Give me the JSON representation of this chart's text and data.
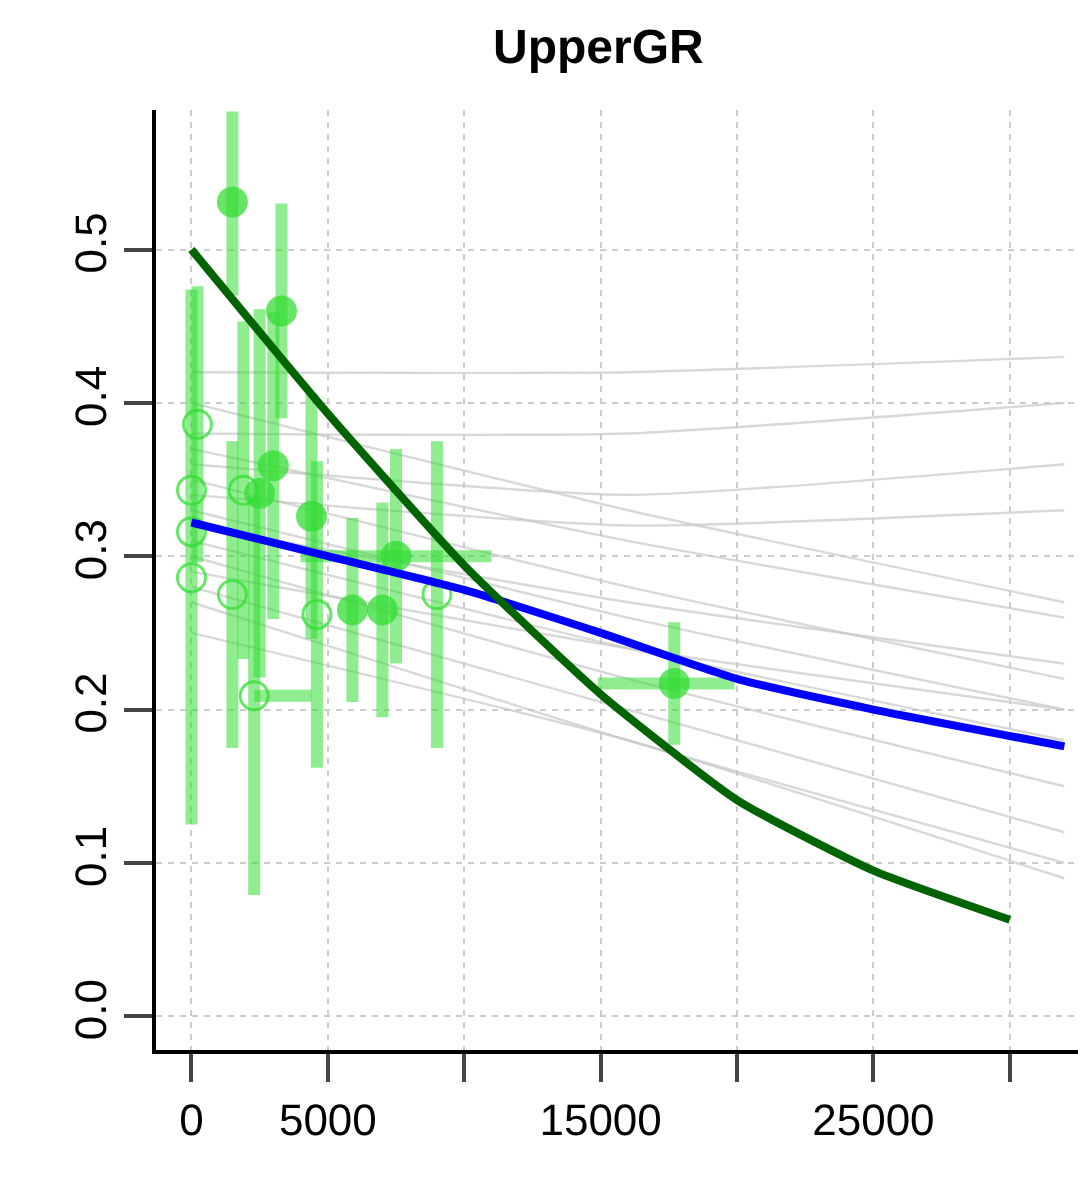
{
  "chart_data": {
    "type": "scatter",
    "title": "UpperGR",
    "xlim": [
      -1300,
      32500
    ],
    "ylim": [
      -0.022,
      0.591
    ],
    "xticks": [
      0,
      5000,
      {
        "value": 10000,
        "label": null
      },
      15000,
      {
        "value": 20000,
        "label": null
      },
      25000,
      {
        "value": 30000,
        "label": null
      }
    ],
    "yticks": [
      {
        "value": 0,
        "label": "0.0"
      },
      0.1,
      0.2,
      0.3,
      0.4,
      0.5
    ],
    "grid": true,
    "series": [
      {
        "type": "line",
        "color": "#c8c8c8",
        "x": [
          0,
          16000,
          32000
        ],
        "values": [
          0.42,
          0.42,
          0.43
        ]
      },
      {
        "type": "line",
        "color": "#c8c8c8",
        "x": [
          0,
          16000,
          32000
        ],
        "values": [
          0.38,
          0.38,
          0.4
        ]
      },
      {
        "type": "line",
        "color": "#c8c8c8",
        "x": [
          0,
          16000,
          32000
        ],
        "values": [
          0.36,
          0.34,
          0.36
        ]
      },
      {
        "type": "line",
        "color": "#c8c8c8",
        "x": [
          0,
          16000,
          32000
        ],
        "values": [
          0.34,
          0.32,
          0.33
        ]
      },
      {
        "type": "line",
        "color": "#c8c8c8",
        "x": [
          0,
          16000,
          32000
        ],
        "values": [
          0.4,
          0.33,
          0.27
        ]
      },
      {
        "type": "line",
        "color": "#c8c8c8",
        "x": [
          0,
          16000,
          32000
        ],
        "values": [
          0.37,
          0.31,
          0.26
        ]
      },
      {
        "type": "line",
        "color": "#c8c8c8",
        "x": [
          0,
          16000,
          32000
        ],
        "values": [
          0.35,
          0.28,
          0.22
        ]
      },
      {
        "type": "line",
        "color": "#c8c8c8",
        "x": [
          0,
          16000,
          32000
        ],
        "values": [
          0.33,
          0.26,
          0.2
        ]
      },
      {
        "type": "line",
        "color": "#c8c8c8",
        "x": [
          0,
          16000,
          32000
        ],
        "values": [
          0.31,
          0.24,
          0.18
        ]
      },
      {
        "type": "line",
        "color": "#c8c8c8",
        "x": [
          0,
          16000,
          32000
        ],
        "values": [
          0.3,
          0.22,
          0.15
        ]
      },
      {
        "type": "line",
        "color": "#c8c8c8",
        "x": [
          0,
          16000,
          32000
        ],
        "values": [
          0.28,
          0.2,
          0.12
        ]
      },
      {
        "type": "line",
        "color": "#c8c8c8",
        "x": [
          0,
          16000,
          32000
        ],
        "values": [
          0.27,
          0.18,
          0.1
        ]
      },
      {
        "type": "line",
        "color": "#c8c8c8",
        "x": [
          0,
          16000,
          32000
        ],
        "values": [
          0.25,
          0.18,
          0.09
        ]
      },
      {
        "type": "line",
        "color": "#c8c8c8",
        "x": [
          0,
          16000,
          32000
        ],
        "values": [
          0.32,
          0.27,
          0.23
        ]
      },
      {
        "type": "line",
        "color": "#c8c8c8",
        "x": [
          0,
          16000,
          32000
        ],
        "values": [
          0.29,
          0.24,
          0.2
        ]
      },
      {
        "marker": "circle",
        "color": "#33dd33",
        "x": [
          1500,
          3300,
          3000,
          4400,
          5900,
          7000,
          2500,
          7500,
          17700
        ],
        "values": [
          0.531,
          0.46,
          0.359,
          0.326,
          0.265,
          0.265,
          0.341,
          0.3,
          0.217
        ],
        "errors": [
          [
            0.47,
            0.59
          ],
          0.07,
          0.1,
          0.08,
          0.06,
          0.07,
          0.12,
          0.07,
          0.04
        ],
        "xerrors": [
          null,
          null,
          null,
          null,
          null,
          null,
          null,
          [
            4000,
            11000
          ],
          [
            14900,
            19900
          ]
        ]
      },
      {
        "marker": "circle",
        "color": "#33dd33",
        "x": [
          220,
          0,
          0,
          0,
          1500,
          2300,
          4600,
          9000,
          1900
        ],
        "values": [
          0.386,
          0.343,
          0.316,
          0.286,
          0.275,
          0.209,
          0.262,
          0.275,
          0.343
        ],
        "errors": [
          0.09,
          [
            0.125,
            0.474
          ],
          null,
          null,
          0.1,
          0.13,
          0.1,
          0.1,
          0.11
        ],
        "xerrors": [
          null,
          null,
          null,
          null,
          null,
          [
            2300,
            4400
          ],
          null,
          null,
          null
        ]
      },
      {
        "type": "line",
        "color": "#0000ff",
        "x": [
          0,
          5000,
          10000,
          15000,
          20000,
          25000,
          32000
        ],
        "values": [
          0.322,
          0.3,
          0.278,
          0.25,
          0.22,
          0.2,
          0.176
        ]
      },
      {
        "type": "line",
        "color": "#006400",
        "x": [
          0,
          5000,
          10000,
          15000,
          20000,
          25000,
          30000
        ],
        "values": [
          0.5,
          0.393,
          0.294,
          0.21,
          0.141,
          0.095,
          0.063
        ]
      }
    ]
  }
}
